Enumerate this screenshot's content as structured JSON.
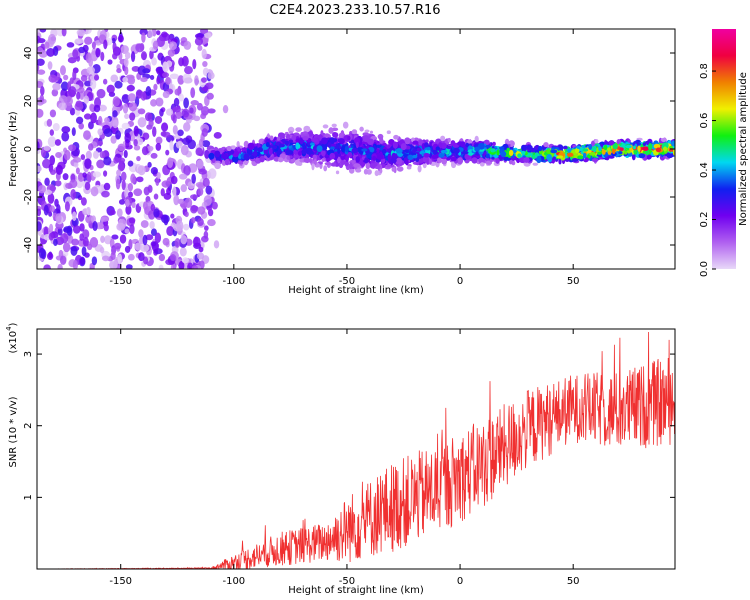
{
  "title": "C2E4.2023.233.10.57.R16",
  "chart_data": [
    {
      "type": "heatmap",
      "name": "spectrogram",
      "xlabel": "Height of straight line (km)",
      "ylabel": "Frequency (Hz)",
      "xlim": [
        -187,
        95
      ],
      "ylim": [
        -50,
        50
      ],
      "xticks": [
        -150,
        -100,
        -50,
        0,
        50
      ],
      "yticks": [
        -40,
        -20,
        0,
        20,
        40
      ],
      "colorbar": {
        "label": "Normalized spectral amplitude",
        "range": [
          0.0,
          0.97
        ],
        "ticks": [
          0.0,
          0.2,
          0.4,
          0.6,
          0.8
        ],
        "colormap": [
          "#e8d8f8",
          "#b060f0",
          "#7000f0",
          "#1020f0",
          "#00d8f0",
          "#10f010",
          "#f0f000",
          "#f08000",
          "#f00040",
          "#f000a0"
        ]
      },
      "noise_region": {
        "x": [
          -187,
          -110
        ],
        "freq_spread": [
          -50,
          50
        ],
        "amplitude": 0.15
      },
      "signal_band": [
        {
          "x": -110,
          "center": -3,
          "width": 3,
          "amp": 0.3
        },
        {
          "x": -100,
          "center": -3,
          "width": 3,
          "amp": 0.4
        },
        {
          "x": -80,
          "center": 1,
          "width": 5,
          "amp": 0.4
        },
        {
          "x": -70,
          "center": 1,
          "width": 6,
          "amp": 0.4
        },
        {
          "x": -50,
          "center": 0,
          "width": 8,
          "amp": 0.35
        },
        {
          "x": -30,
          "center": -2,
          "width": 6,
          "amp": 0.4
        },
        {
          "x": -10,
          "center": -1,
          "width": 4,
          "amp": 0.45
        },
        {
          "x": 10,
          "center": -1,
          "width": 4,
          "amp": 0.5
        },
        {
          "x": 30,
          "center": -2,
          "width": 3,
          "amp": 0.7
        },
        {
          "x": 50,
          "center": -2,
          "width": 3,
          "amp": 0.8
        },
        {
          "x": 70,
          "center": 0,
          "width": 3,
          "amp": 0.8
        },
        {
          "x": 95,
          "center": 0,
          "width": 3,
          "amp": 0.85
        }
      ]
    },
    {
      "type": "line",
      "name": "snr",
      "xlabel": "Height of straight line (km)",
      "ylabel": "SNR (10 * v/v)",
      "ylabel_multiplier": "(x10",
      "ylabel_multiplier_exp": "4",
      "ylabel_multiplier_close": ")",
      "xlim": [
        -187,
        95
      ],
      "ylim": [
        0,
        3.35
      ],
      "xticks": [
        -150,
        -100,
        -50,
        0,
        50
      ],
      "yticks": [
        1,
        2,
        3
      ],
      "color": "#f03030",
      "envelope": [
        {
          "x": -187,
          "base": 0.0,
          "spread": 0.0
        },
        {
          "x": -110,
          "base": 0.01,
          "spread": 0.01
        },
        {
          "x": -100,
          "base": 0.08,
          "spread": 0.15
        },
        {
          "x": -80,
          "base": 0.25,
          "spread": 0.3
        },
        {
          "x": -60,
          "base": 0.35,
          "spread": 0.35
        },
        {
          "x": -50,
          "base": 0.5,
          "spread": 0.6
        },
        {
          "x": -30,
          "base": 0.8,
          "spread": 0.8
        },
        {
          "x": -10,
          "base": 1.05,
          "spread": 0.8
        },
        {
          "x": 10,
          "base": 1.4,
          "spread": 0.8
        },
        {
          "x": 30,
          "base": 1.9,
          "spread": 0.7
        },
        {
          "x": 50,
          "base": 2.2,
          "spread": 0.6
        },
        {
          "x": 70,
          "base": 2.15,
          "spread": 0.7
        },
        {
          "x": 95,
          "base": 2.3,
          "spread": 0.8
        }
      ]
    }
  ]
}
